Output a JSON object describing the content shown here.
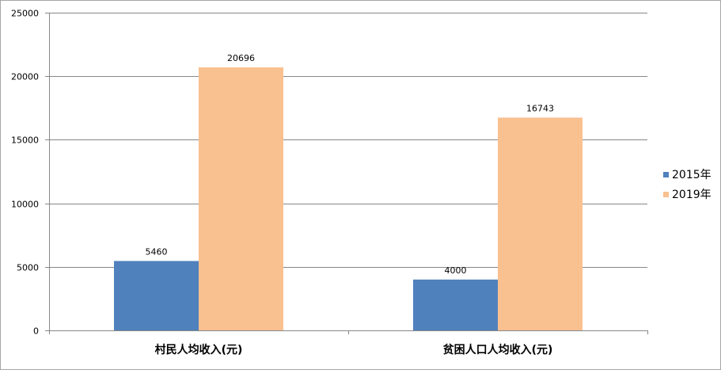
{
  "chart_data": {
    "type": "bar",
    "title": "",
    "xlabel": "",
    "ylabel": "",
    "categories": [
      "村民人均收入(元)",
      "贫困人口人均收入(元)"
    ],
    "series": [
      {
        "name": "2015年",
        "color": "#4f81bd",
        "values": [
          5460,
          4000
        ]
      },
      {
        "name": "2019年",
        "color": "#f9c090",
        "values": [
          20696,
          16743
        ]
      }
    ],
    "ylim": [
      0,
      25000
    ],
    "yticks": [
      "0",
      "5000",
      "10000",
      "15000",
      "20000",
      "25000"
    ],
    "grid": true,
    "legend_position": "right"
  }
}
